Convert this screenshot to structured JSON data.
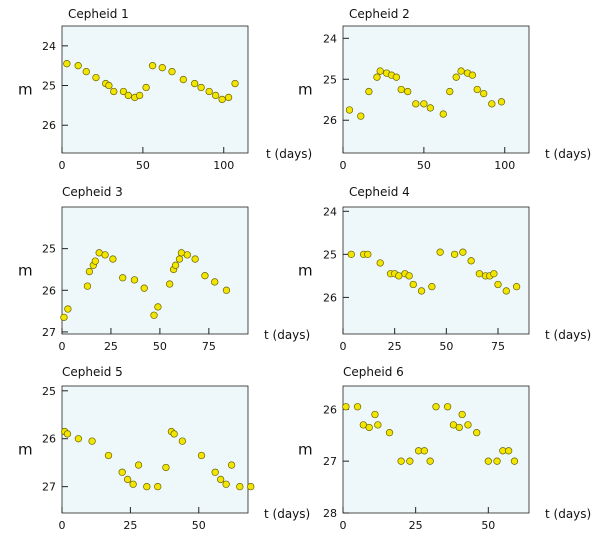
{
  "chart_data": [
    {
      "type": "scatter",
      "title": "Cepheid 1",
      "xlabel": "t (days)",
      "ylabel": "m",
      "xlim": [
        0,
        115
      ],
      "ylim": [
        26.7,
        23.5
      ],
      "y_inverted": true,
      "xticks": [
        0,
        50,
        100
      ],
      "yticks": [
        24,
        25,
        26
      ],
      "marker_color": "#f2e600",
      "panel_color": "#eef8fb",
      "points": [
        [
          3,
          24.45
        ],
        [
          10,
          24.5
        ],
        [
          15,
          24.65
        ],
        [
          21,
          24.8
        ],
        [
          27,
          24.95
        ],
        [
          29,
          25.0
        ],
        [
          32,
          25.15
        ],
        [
          38,
          25.15
        ],
        [
          41,
          25.25
        ],
        [
          45,
          25.3
        ],
        [
          48,
          25.25
        ],
        [
          52,
          25.05
        ],
        [
          56,
          24.5
        ],
        [
          62,
          24.55
        ],
        [
          68,
          24.65
        ],
        [
          75,
          24.85
        ],
        [
          82,
          24.95
        ],
        [
          86,
          25.05
        ],
        [
          91,
          25.15
        ],
        [
          95,
          25.25
        ],
        [
          99,
          25.35
        ],
        [
          103,
          25.3
        ],
        [
          107,
          24.95
        ]
      ]
    },
    {
      "type": "scatter",
      "title": "Cepheid 2",
      "xlabel": "t (days)",
      "ylabel": "m",
      "xlim": [
        0,
        115
      ],
      "ylim": [
        26.8,
        23.7
      ],
      "y_inverted": true,
      "xticks": [
        0,
        50,
        100
      ],
      "yticks": [
        24,
        25,
        26
      ],
      "marker_color": "#f2e600",
      "panel_color": "#eef8fb",
      "points": [
        [
          4,
          25.75
        ],
        [
          11,
          25.9
        ],
        [
          16,
          25.3
        ],
        [
          21,
          24.95
        ],
        [
          23,
          24.8
        ],
        [
          27,
          24.85
        ],
        [
          30,
          24.9
        ],
        [
          33,
          24.95
        ],
        [
          36,
          25.25
        ],
        [
          40,
          25.3
        ],
        [
          45,
          25.6
        ],
        [
          50,
          25.6
        ],
        [
          54,
          25.7
        ],
        [
          62,
          25.85
        ],
        [
          66,
          25.3
        ],
        [
          70,
          24.95
        ],
        [
          73,
          24.8
        ],
        [
          77,
          24.85
        ],
        [
          80,
          24.9
        ],
        [
          83,
          25.25
        ],
        [
          87,
          25.35
        ],
        [
          92,
          25.6
        ],
        [
          98,
          25.55
        ]
      ]
    },
    {
      "type": "scatter",
      "title": "Cepheid 3",
      "xlabel": "t (days)",
      "ylabel": "m",
      "xlim": [
        0,
        95
      ],
      "ylim": [
        27.05,
        24.0
      ],
      "y_inverted": true,
      "xticks": [
        0,
        25,
        50,
        75
      ],
      "yticks": [
        25,
        26,
        27
      ],
      "marker_color": "#f2e600",
      "panel_color": "#eef8fb",
      "points": [
        [
          1,
          26.65
        ],
        [
          3,
          26.45
        ],
        [
          13,
          25.9
        ],
        [
          14,
          25.55
        ],
        [
          16,
          25.4
        ],
        [
          17,
          25.3
        ],
        [
          19,
          25.1
        ],
        [
          22,
          25.15
        ],
        [
          26,
          25.25
        ],
        [
          31,
          25.7
        ],
        [
          37,
          25.75
        ],
        [
          42,
          25.95
        ],
        [
          47,
          26.6
        ],
        [
          49,
          26.4
        ],
        [
          55,
          25.85
        ],
        [
          57,
          25.5
        ],
        [
          58,
          25.4
        ],
        [
          60,
          25.25
        ],
        [
          61,
          25.1
        ],
        [
          64,
          25.15
        ],
        [
          68,
          25.25
        ],
        [
          73,
          25.65
        ],
        [
          78,
          25.8
        ],
        [
          84,
          26.0
        ]
      ]
    },
    {
      "type": "scatter",
      "title": "Cepheid 4",
      "xlabel": "t (days)",
      "ylabel": "m",
      "xlim": [
        0,
        90
      ],
      "ylim": [
        26.85,
        23.9
      ],
      "y_inverted": true,
      "xticks": [
        0,
        25,
        50,
        75
      ],
      "yticks": [
        24,
        25,
        26
      ],
      "marker_color": "#f2e600",
      "panel_color": "#eef8fb",
      "points": [
        [
          4,
          25.0
        ],
        [
          10,
          25.0
        ],
        [
          12,
          25.0
        ],
        [
          18,
          25.2
        ],
        [
          23,
          25.45
        ],
        [
          25,
          25.45
        ],
        [
          27,
          25.5
        ],
        [
          30,
          25.45
        ],
        [
          32,
          25.5
        ],
        [
          34,
          25.7
        ],
        [
          38,
          25.85
        ],
        [
          43,
          25.75
        ],
        [
          47,
          24.95
        ],
        [
          54,
          25.0
        ],
        [
          58,
          24.95
        ],
        [
          62,
          25.15
        ],
        [
          66,
          25.45
        ],
        [
          69,
          25.5
        ],
        [
          71,
          25.5
        ],
        [
          73,
          25.45
        ],
        [
          75,
          25.7
        ],
        [
          79,
          25.85
        ],
        [
          84,
          25.75
        ]
      ]
    },
    {
      "type": "scatter",
      "title": "Cepheid 5",
      "xlabel": "t (days)",
      "ylabel": "m",
      "xlim": [
        0,
        68
      ],
      "ylim": [
        27.55,
        24.9
      ],
      "y_inverted": true,
      "xticks": [
        0,
        25,
        50
      ],
      "yticks": [
        25,
        26,
        27
      ],
      "marker_color": "#f2e600",
      "panel_color": "#eef8fb",
      "points": [
        [
          1,
          25.85
        ],
        [
          2,
          25.9
        ],
        [
          6,
          26.0
        ],
        [
          11,
          26.05
        ],
        [
          17,
          26.35
        ],
        [
          22,
          26.7
        ],
        [
          24,
          26.85
        ],
        [
          26,
          26.95
        ],
        [
          28,
          26.55
        ],
        [
          31,
          27.0
        ],
        [
          35,
          27.0
        ],
        [
          38,
          26.6
        ],
        [
          40,
          25.85
        ],
        [
          41,
          25.9
        ],
        [
          44,
          26.05
        ],
        [
          51,
          26.35
        ],
        [
          56,
          26.7
        ],
        [
          58,
          26.85
        ],
        [
          60,
          26.95
        ],
        [
          62,
          26.55
        ],
        [
          65,
          27.0
        ],
        [
          69,
          27.0
        ],
        [
          72,
          26.55
        ]
      ]
    },
    {
      "type": "scatter",
      "title": "Cepheid 6",
      "xlabel": "t (days)",
      "ylabel": "m",
      "xlim": [
        0,
        64
      ],
      "ylim": [
        28.0,
        25.55
      ],
      "y_inverted": true,
      "xticks": [
        0,
        25,
        50
      ],
      "yticks": [
        26,
        27,
        28
      ],
      "marker_color": "#f2e600",
      "panel_color": "#eef8fb",
      "points": [
        [
          1,
          25.95
        ],
        [
          5,
          25.95
        ],
        [
          7,
          26.3
        ],
        [
          9,
          26.35
        ],
        [
          11,
          26.1
        ],
        [
          12,
          26.3
        ],
        [
          16,
          26.45
        ],
        [
          20,
          27.0
        ],
        [
          23,
          27.0
        ],
        [
          26,
          26.8
        ],
        [
          28,
          26.8
        ],
        [
          30,
          27.0
        ],
        [
          32,
          25.95
        ],
        [
          36,
          25.95
        ],
        [
          38,
          26.3
        ],
        [
          40,
          26.35
        ],
        [
          41,
          26.1
        ],
        [
          43,
          26.3
        ],
        [
          46,
          26.45
        ],
        [
          50,
          27.0
        ],
        [
          53,
          27.0
        ],
        [
          55,
          26.8
        ],
        [
          57,
          26.8
        ],
        [
          59,
          27.0
        ]
      ]
    }
  ]
}
